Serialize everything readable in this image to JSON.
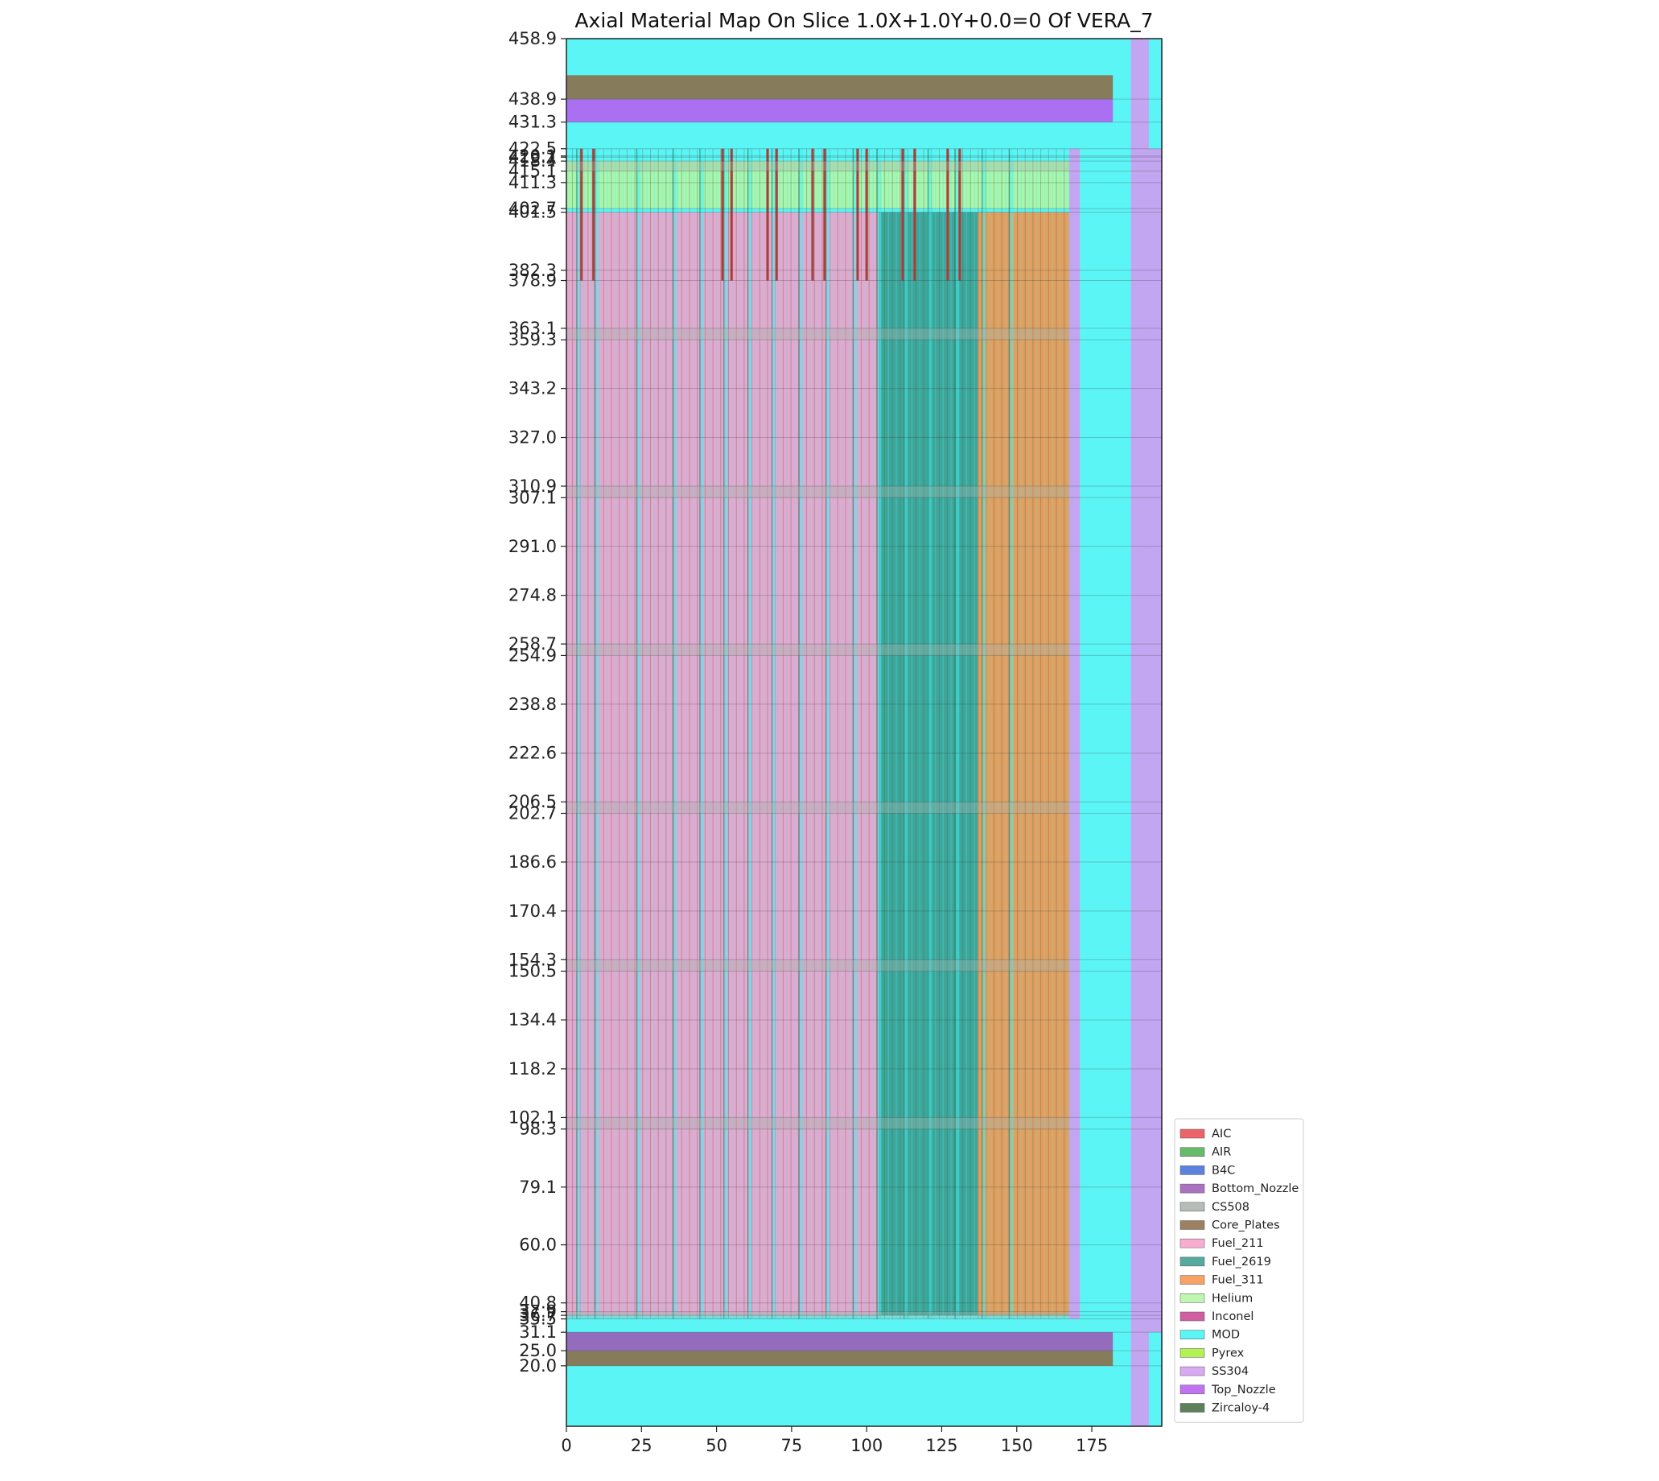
{
  "chart_data": {
    "type": "heatmap",
    "title": "Axial Material Map On Slice 1.0X+1.0Y+0.0=0 Of VERA_7",
    "xlabel": "",
    "ylabel": "",
    "xlim": [
      0,
      198.3
    ],
    "ylim": [
      0,
      458.9
    ],
    "x_ticks": [
      0,
      25,
      50,
      75,
      100,
      125,
      150,
      175
    ],
    "x_tick_labels": [
      "0",
      "25",
      "50",
      "75",
      "100",
      "125",
      "150",
      "175"
    ],
    "y_ticks": [
      20.0,
      25.0,
      31.1,
      35.5,
      36.7,
      37.9,
      40.8,
      60.0,
      79.1,
      98.3,
      102.1,
      118.2,
      134.4,
      150.5,
      154.3,
      170.4,
      186.6,
      202.7,
      206.5,
      222.6,
      238.8,
      254.9,
      258.7,
      274.8,
      291.0,
      307.1,
      310.9,
      327.0,
      343.2,
      359.3,
      363.1,
      378.9,
      382.3,
      401.5,
      402.7,
      411.3,
      415.1,
      418.4,
      419.7,
      420.1,
      422.5,
      431.3,
      438.9,
      458.9
    ],
    "y_tick_labels": [
      "20.0",
      "25.0",
      "31.1",
      "35.5",
      "36.7",
      "37.9",
      "40.8",
      "60.0",
      "79.1",
      "98.3",
      "102.1",
      "118.2",
      "134.4",
      "150.5",
      "154.3",
      "170.4",
      "186.6",
      "202.7",
      "206.5",
      "222.6",
      "238.8",
      "254.9",
      "258.7",
      "274.8",
      "291.0",
      "307.1",
      "310.9",
      "327.0",
      "343.2",
      "359.3",
      "363.1",
      "378.9",
      "382.3",
      "401.5",
      "402.7",
      "411.3",
      "415.1",
      "418.4",
      "419.7",
      "420.1",
      "422.5",
      "431.3",
      "438.9",
      "458.9"
    ],
    "grid": true,
    "legend_position": "lower-right outside",
    "legend": [
      {
        "name": "AIC",
        "color": "#e8494f"
      },
      {
        "name": "AIR",
        "color": "#4caf50"
      },
      {
        "name": "B4C",
        "color": "#3f6bd8"
      },
      {
        "name": "Bottom_Nozzle",
        "color": "#9b59b6"
      },
      {
        "name": "CS508",
        "color": "#a8b1ab"
      },
      {
        "name": "Core_Plates",
        "color": "#8c6a45"
      },
      {
        "name": "Fuel_211",
        "color": "#f79dc8"
      },
      {
        "name": "Fuel_2619",
        "color": "#3a9b8e"
      },
      {
        "name": "Fuel_311",
        "color": "#f7924a"
      },
      {
        "name": "Helium",
        "color": "#b4f5a4"
      },
      {
        "name": "Inconel",
        "color": "#c7438f"
      },
      {
        "name": "MOD",
        "color": "#3ff3f3"
      },
      {
        "name": "Pyrex",
        "color": "#a6f03a"
      },
      {
        "name": "SS304",
        "color": "#d29bf0"
      },
      {
        "name": "Top_Nozzle",
        "color": "#b65cf0"
      },
      {
        "name": "Zircaloy-4",
        "color": "#3f6b3f"
      }
    ],
    "regions": [
      {
        "material": "MOD",
        "x": [
          0,
          198.3
        ],
        "y": [
          0,
          458.9
        ]
      },
      {
        "material": "Core_Plates",
        "x": [
          0,
          182
        ],
        "y": [
          20.0,
          25.0
        ]
      },
      {
        "material": "Bottom_Nozzle",
        "x": [
          0,
          182
        ],
        "y": [
          25.0,
          31.1
        ]
      },
      {
        "material": "Top_Nozzle",
        "x": [
          0,
          182
        ],
        "y": [
          431.3,
          438.9
        ]
      },
      {
        "material": "Core_Plates",
        "x": [
          0,
          182
        ],
        "y": [
          438.9,
          446.8
        ]
      },
      {
        "material": "SS304",
        "x": [
          188,
          194
        ],
        "y": [
          0,
          458.9
        ]
      },
      {
        "material": "SS304",
        "x": [
          194,
          198.3
        ],
        "y": [
          31.1,
          422.5
        ]
      },
      {
        "material": "SS304",
        "x": [
          167.5,
          171
        ],
        "y": [
          35.5,
          422.5
        ]
      },
      {
        "material": "Fuel_211",
        "x": [
          0,
          104
        ],
        "y": [
          36.7,
          401.5
        ]
      },
      {
        "material": "Fuel_2619",
        "x": [
          104,
          137
        ],
        "y": [
          36.7,
          401.5
        ]
      },
      {
        "material": "Fuel_311",
        "x": [
          137,
          167.5
        ],
        "y": [
          36.7,
          401.5
        ]
      },
      {
        "material": "Helium",
        "x": [
          0,
          167.5
        ],
        "y": [
          402.7,
          418.4
        ]
      }
    ],
    "control_rods": {
      "material": "AIC",
      "x": [
        5,
        9,
        52,
        55,
        67,
        70,
        82,
        86,
        97,
        100,
        112,
        116,
        127,
        131
      ],
      "y": [
        378.9,
        422.5
      ]
    }
  }
}
